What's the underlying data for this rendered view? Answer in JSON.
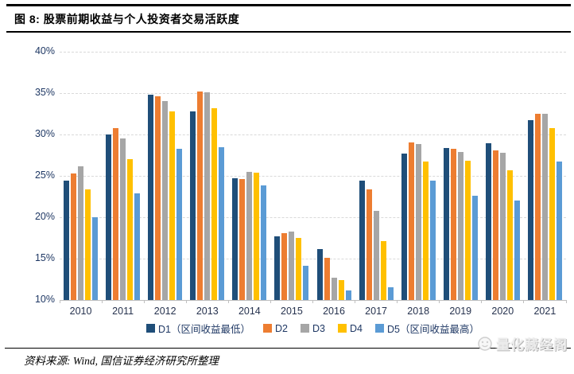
{
  "header": {
    "title": "图 8: 股票前期收益与个人投资者交易活跃度"
  },
  "footer": {
    "source": "资料来源: Wind, 国信证券经济研究所整理",
    "watermark": "量化藏经阁"
  },
  "chart_data": {
    "type": "bar",
    "title": "股票前期收益与个人投资者交易活跃度",
    "xlabel": "",
    "ylabel": "",
    "categories": [
      "2010",
      "2011",
      "2012",
      "2013",
      "2014",
      "2015",
      "2016",
      "2017",
      "2018",
      "2019",
      "2020",
      "2021"
    ],
    "series": [
      {
        "name": "D1（区间收益最低）",
        "color": "#1f4e79",
        "values": [
          24.4,
          30.0,
          34.8,
          32.8,
          24.7,
          17.7,
          16.2,
          24.4,
          27.7,
          28.4,
          28.9,
          31.7
        ]
      },
      {
        "name": "D2",
        "color": "#ed7d31",
        "values": [
          25.3,
          30.8,
          34.6,
          35.2,
          24.6,
          18.1,
          15.1,
          23.4,
          29.0,
          28.3,
          28.1,
          32.5
        ]
      },
      {
        "name": "D3",
        "color": "#a6a6a6",
        "values": [
          26.2,
          29.5,
          34.0,
          35.1,
          25.5,
          18.3,
          12.7,
          20.8,
          28.8,
          27.9,
          27.8,
          32.5
        ]
      },
      {
        "name": "D4",
        "color": "#ffc000",
        "values": [
          23.4,
          27.0,
          32.8,
          33.2,
          25.4,
          17.5,
          12.4,
          17.1,
          26.7,
          26.8,
          25.7,
          30.8
        ]
      },
      {
        "name": "D5（区间收益最高）",
        "color": "#5b9bd5",
        "values": [
          20.0,
          22.9,
          28.3,
          28.5,
          23.8,
          14.1,
          11.2,
          11.5,
          24.4,
          22.6,
          22.0,
          26.7
        ]
      }
    ],
    "ylim": [
      10,
      40
    ],
    "ytick_step": 5,
    "ytick_labels": [
      "40%",
      "35%",
      "30%",
      "25%",
      "20%",
      "15%",
      "10%"
    ],
    "grid": "horizontal-dashed",
    "legend_position": "bottom"
  }
}
